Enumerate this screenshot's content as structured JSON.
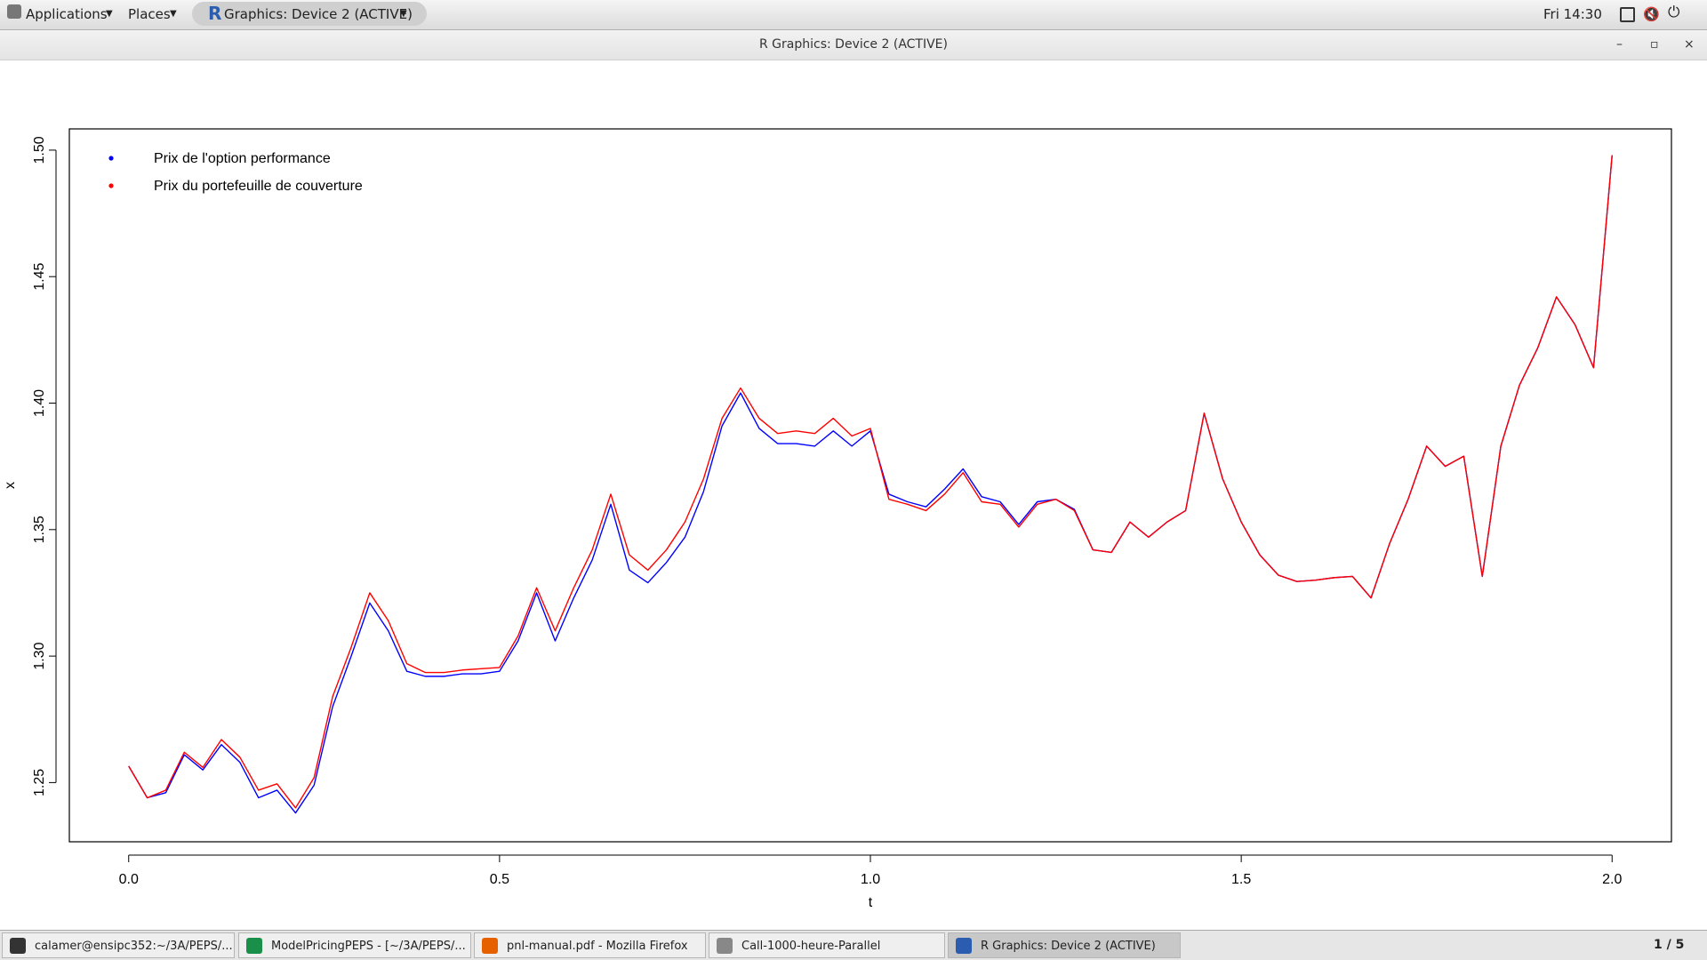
{
  "panel": {
    "applications": "Applications",
    "places": "Places",
    "active_window": "Graphics: Device 2 (ACTIVE)",
    "clock": "Fri 14:30"
  },
  "window": {
    "title": "R Graphics: Device 2 (ACTIVE)"
  },
  "taskbar": {
    "items": [
      "calamer@ensipc352:~/3A/PEPS/...",
      "ModelPricingPEPS - [~/3A/PEPS/...",
      "pnl-manual.pdf - Mozilla Firefox",
      "Call-1000-heure-Parallel",
      "R Graphics: Device 2 (ACTIVE)"
    ],
    "pager": "1 / 5"
  },
  "chart_data": {
    "type": "line",
    "xlabel": "t",
    "ylabel": "x",
    "x": [
      0,
      0.025,
      0.05,
      0.075,
      0.1,
      0.125,
      0.15,
      0.175,
      0.2,
      0.225,
      0.25,
      0.275,
      0.3,
      0.325,
      0.35,
      0.375,
      0.4,
      0.425,
      0.45,
      0.475,
      0.5,
      0.525,
      0.55,
      0.575,
      0.6,
      0.625,
      0.65,
      0.675,
      0.7,
      0.725,
      0.75,
      0.775,
      0.8,
      0.825,
      0.85,
      0.875,
      0.9,
      0.925,
      0.95,
      0.975,
      1.0,
      1.025,
      1.05,
      1.075,
      1.1,
      1.125,
      1.15,
      1.175,
      1.2,
      1.225,
      1.25,
      1.275,
      1.3,
      1.325,
      1.35,
      1.375,
      1.4,
      1.425,
      1.45,
      1.475,
      1.5,
      1.525,
      1.55,
      1.575,
      1.6,
      1.625,
      1.65,
      1.675,
      1.7,
      1.725,
      1.75,
      1.775,
      1.8,
      1.825,
      1.85,
      1.875,
      1.9,
      1.925,
      1.95,
      1.975,
      2.0
    ],
    "series": [
      {
        "name": "Prix de l'option performance",
        "color": "#0000ff",
        "values": [
          1.2565,
          1.244,
          1.246,
          1.261,
          1.255,
          1.265,
          1.258,
          1.244,
          1.247,
          1.238,
          1.249,
          1.28,
          1.3,
          1.321,
          1.31,
          1.294,
          1.292,
          1.292,
          1.293,
          1.293,
          1.294,
          1.306,
          1.325,
          1.306,
          1.323,
          1.338,
          1.36,
          1.334,
          1.329,
          1.337,
          1.347,
          1.365,
          1.391,
          1.404,
          1.39,
          1.384,
          1.384,
          1.383,
          1.389,
          1.383,
          1.389,
          1.364,
          1.361,
          1.359,
          1.366,
          1.374,
          1.363,
          1.361,
          1.352,
          1.361,
          1.362,
          1.358,
          1.342,
          1.341,
          1.353,
          1.347,
          1.353,
          1.3575,
          1.396,
          1.37,
          1.353,
          1.34,
          1.332,
          1.3295,
          1.33,
          1.331,
          1.3315,
          1.323,
          1.3445,
          1.362,
          1.383,
          1.375,
          1.379,
          1.3315,
          1.383,
          1.407,
          1.422,
          1.442,
          1.431,
          1.414,
          1.498
        ]
      },
      {
        "name": "Prix du portefeuille de couverture",
        "color": "#ff0000",
        "values": [
          1.2565,
          1.244,
          1.247,
          1.262,
          1.256,
          1.267,
          1.26,
          1.247,
          1.2495,
          1.24,
          1.252,
          1.284,
          1.3035,
          1.325,
          1.314,
          1.297,
          1.2935,
          1.2935,
          1.2945,
          1.295,
          1.2955,
          1.308,
          1.327,
          1.31,
          1.327,
          1.342,
          1.364,
          1.34,
          1.334,
          1.342,
          1.353,
          1.37,
          1.394,
          1.406,
          1.394,
          1.388,
          1.389,
          1.388,
          1.394,
          1.387,
          1.39,
          1.362,
          1.36,
          1.3575,
          1.364,
          1.3725,
          1.361,
          1.36,
          1.351,
          1.36,
          1.362,
          1.3575,
          1.342,
          1.341,
          1.353,
          1.347,
          1.353,
          1.3575,
          1.396,
          1.37,
          1.353,
          1.34,
          1.332,
          1.3295,
          1.33,
          1.331,
          1.3315,
          1.323,
          1.3445,
          1.362,
          1.383,
          1.375,
          1.379,
          1.3315,
          1.383,
          1.407,
          1.422,
          1.442,
          1.431,
          1.414,
          1.498
        ]
      }
    ],
    "xlim": [
      -0.08,
      2.08
    ],
    "ylim": [
      1.2266,
      1.5084
    ],
    "xticks": [
      {
        "value": 0,
        "label": "0.0"
      },
      0.5,
      {
        "value": 1,
        "label": "1.0"
      },
      1.5,
      {
        "value": 2,
        "label": "2.0"
      }
    ],
    "yticks": [
      1.25,
      {
        "value": 1.3,
        "label": "1.30"
      },
      1.35,
      {
        "value": 1.4,
        "label": "1.40"
      },
      1.45,
      {
        "value": 1.5,
        "label": "1.50"
      }
    ],
    "legend": "top-left"
  }
}
